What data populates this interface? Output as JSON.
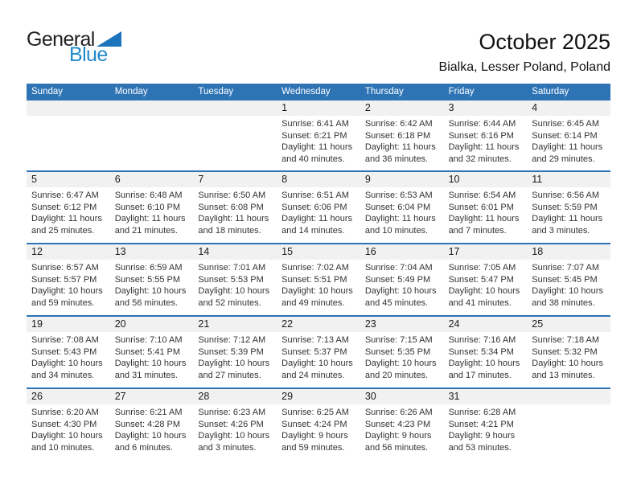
{
  "logo": {
    "general": "General",
    "blue": "Blue"
  },
  "header": {
    "title": "October 2025",
    "subtitle": "Bialka, Lesser Poland, Poland"
  },
  "colors": {
    "header_blue": "#2E74B5",
    "row_separator_blue": "#2E74B5",
    "band_gray": "#F1F1F1",
    "weekday_text": "#FFFFFF",
    "logo_triangle_blue": "#1C75BC",
    "logo_text_blue": "#2289CB"
  },
  "calendar": {
    "day_headers": [
      "Sunday",
      "Monday",
      "Tuesday",
      "Wednesday",
      "Thursday",
      "Friday",
      "Saturday"
    ],
    "labels": {
      "sunrise": "Sunrise:",
      "sunset": "Sunset:",
      "daylight": "Daylight:"
    },
    "weeks": [
      {
        "days": [
          null,
          null,
          null,
          {
            "date": "1",
            "sunrise": "6:41 AM",
            "sunset": "6:21 PM",
            "daylight": "11 hours and 40 minutes."
          },
          {
            "date": "2",
            "sunrise": "6:42 AM",
            "sunset": "6:18 PM",
            "daylight": "11 hours and 36 minutes."
          },
          {
            "date": "3",
            "sunrise": "6:44 AM",
            "sunset": "6:16 PM",
            "daylight": "11 hours and 32 minutes."
          },
          {
            "date": "4",
            "sunrise": "6:45 AM",
            "sunset": "6:14 PM",
            "daylight": "11 hours and 29 minutes."
          }
        ]
      },
      {
        "days": [
          {
            "date": "5",
            "sunrise": "6:47 AM",
            "sunset": "6:12 PM",
            "daylight": "11 hours and 25 minutes."
          },
          {
            "date": "6",
            "sunrise": "6:48 AM",
            "sunset": "6:10 PM",
            "daylight": "11 hours and 21 minutes."
          },
          {
            "date": "7",
            "sunrise": "6:50 AM",
            "sunset": "6:08 PM",
            "daylight": "11 hours and 18 minutes."
          },
          {
            "date": "8",
            "sunrise": "6:51 AM",
            "sunset": "6:06 PM",
            "daylight": "11 hours and 14 minutes."
          },
          {
            "date": "9",
            "sunrise": "6:53 AM",
            "sunset": "6:04 PM",
            "daylight": "11 hours and 10 minutes."
          },
          {
            "date": "10",
            "sunrise": "6:54 AM",
            "sunset": "6:01 PM",
            "daylight": "11 hours and 7 minutes."
          },
          {
            "date": "11",
            "sunrise": "6:56 AM",
            "sunset": "5:59 PM",
            "daylight": "11 hours and 3 minutes."
          }
        ]
      },
      {
        "days": [
          {
            "date": "12",
            "sunrise": "6:57 AM",
            "sunset": "5:57 PM",
            "daylight": "10 hours and 59 minutes."
          },
          {
            "date": "13",
            "sunrise": "6:59 AM",
            "sunset": "5:55 PM",
            "daylight": "10 hours and 56 minutes."
          },
          {
            "date": "14",
            "sunrise": "7:01 AM",
            "sunset": "5:53 PM",
            "daylight": "10 hours and 52 minutes."
          },
          {
            "date": "15",
            "sunrise": "7:02 AM",
            "sunset": "5:51 PM",
            "daylight": "10 hours and 49 minutes."
          },
          {
            "date": "16",
            "sunrise": "7:04 AM",
            "sunset": "5:49 PM",
            "daylight": "10 hours and 45 minutes."
          },
          {
            "date": "17",
            "sunrise": "7:05 AM",
            "sunset": "5:47 PM",
            "daylight": "10 hours and 41 minutes."
          },
          {
            "date": "18",
            "sunrise": "7:07 AM",
            "sunset": "5:45 PM",
            "daylight": "10 hours and 38 minutes."
          }
        ]
      },
      {
        "days": [
          {
            "date": "19",
            "sunrise": "7:08 AM",
            "sunset": "5:43 PM",
            "daylight": "10 hours and 34 minutes."
          },
          {
            "date": "20",
            "sunrise": "7:10 AM",
            "sunset": "5:41 PM",
            "daylight": "10 hours and 31 minutes."
          },
          {
            "date": "21",
            "sunrise": "7:12 AM",
            "sunset": "5:39 PM",
            "daylight": "10 hours and 27 minutes."
          },
          {
            "date": "22",
            "sunrise": "7:13 AM",
            "sunset": "5:37 PM",
            "daylight": "10 hours and 24 minutes."
          },
          {
            "date": "23",
            "sunrise": "7:15 AM",
            "sunset": "5:35 PM",
            "daylight": "10 hours and 20 minutes."
          },
          {
            "date": "24",
            "sunrise": "7:16 AM",
            "sunset": "5:34 PM",
            "daylight": "10 hours and 17 minutes."
          },
          {
            "date": "25",
            "sunrise": "7:18 AM",
            "sunset": "5:32 PM",
            "daylight": "10 hours and 13 minutes."
          }
        ]
      },
      {
        "days": [
          {
            "date": "26",
            "sunrise": "6:20 AM",
            "sunset": "4:30 PM",
            "daylight": "10 hours and 10 minutes."
          },
          {
            "date": "27",
            "sunrise": "6:21 AM",
            "sunset": "4:28 PM",
            "daylight": "10 hours and 6 minutes."
          },
          {
            "date": "28",
            "sunrise": "6:23 AM",
            "sunset": "4:26 PM",
            "daylight": "10 hours and 3 minutes."
          },
          {
            "date": "29",
            "sunrise": "6:25 AM",
            "sunset": "4:24 PM",
            "daylight": "9 hours and 59 minutes."
          },
          {
            "date": "30",
            "sunrise": "6:26 AM",
            "sunset": "4:23 PM",
            "daylight": "9 hours and 56 minutes."
          },
          {
            "date": "31",
            "sunrise": "6:28 AM",
            "sunset": "4:21 PM",
            "daylight": "9 hours and 53 minutes."
          },
          null
        ]
      }
    ]
  }
}
